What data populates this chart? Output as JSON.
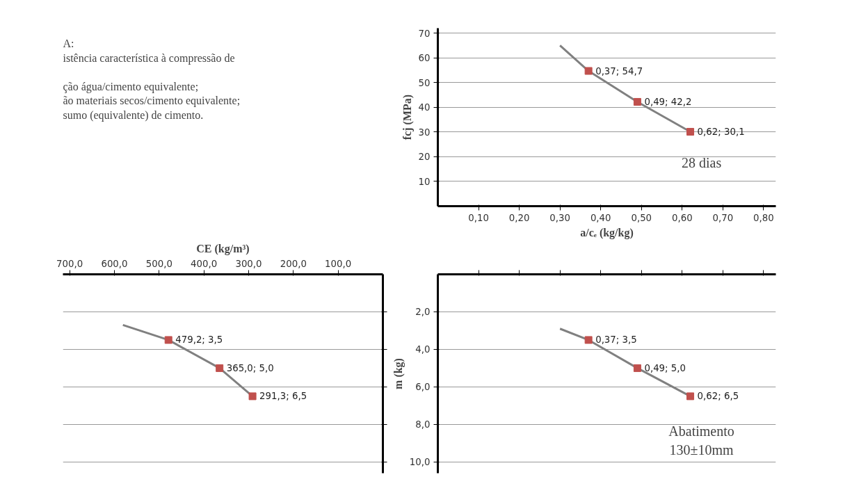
{
  "chart_data": [
    {
      "type": "other",
      "annotations": [
        "A:",
        "istência característica à compressão de",
        "ção água/cimento equivalente;",
        "ão materiais secos/cimento equivalente;",
        "sumo (equivalente) de cimento."
      ]
    },
    {
      "type": "line",
      "xlabel": "a/cₑ (kg/kg)",
      "ylabel": "fcj (MPa)",
      "xlim": [
        0,
        0.83
      ],
      "ylim": [
        0,
        72
      ],
      "grid": "y",
      "xticks": [
        {
          "value": 0.1,
          "label": "0,10"
        },
        {
          "value": 0.2,
          "label": "0,20"
        },
        {
          "value": 0.3,
          "label": "0,30"
        },
        {
          "value": 0.4,
          "label": "0,40"
        },
        {
          "value": 0.5,
          "label": "0,50"
        },
        {
          "value": 0.6,
          "label": "0,60"
        },
        {
          "value": 0.7,
          "label": "0,70"
        },
        {
          "value": 0.8,
          "label": "0,80"
        }
      ],
      "yticks": [
        10,
        20,
        30,
        40,
        50,
        60,
        70
      ],
      "annotations": [
        "28 dias"
      ],
      "series": [
        {
          "color": "#808080",
          "x": [
            0.3,
            0.37,
            0.49,
            0.62
          ],
          "values": [
            65,
            54.7,
            42.2,
            30.1
          ]
        },
        {
          "type": "scatter",
          "marker": "square",
          "color": "#c0504d",
          "x": [
            0.37,
            0.49,
            0.62
          ],
          "values": [
            54.7,
            42.2,
            30.1
          ],
          "value_labels": [
            "0,37; 54,7",
            "0,49; 42,2",
            "0,62; 30,1"
          ]
        }
      ]
    },
    {
      "type": "line",
      "xlabel": "CE (kg/m³)",
      "xlim": [
        715,
        0
      ],
      "ylim": [
        10.6,
        0
      ],
      "grid": "y",
      "tick_labels": "x",
      "xticks": [
        {
          "value": 100,
          "label": "100,0"
        },
        {
          "value": 200,
          "label": "200,0"
        },
        {
          "value": 300,
          "label": "300,0"
        },
        {
          "value": 400,
          "label": "400,0"
        },
        {
          "value": 500,
          "label": "500,0"
        },
        {
          "value": 600,
          "label": "600,0"
        },
        {
          "value": 700,
          "label": "700,0"
        }
      ],
      "yticks": [
        2,
        4,
        6,
        8,
        10
      ],
      "series": [
        {
          "color": "#808080",
          "x": [
            581,
            479.2,
            365.0,
            291.3
          ],
          "values": [
            2.7,
            3.5,
            5.0,
            6.5
          ]
        },
        {
          "type": "scatter",
          "marker": "square",
          "color": "#c0504d",
          "x": [
            479.2,
            365.0,
            291.3
          ],
          "values": [
            3.5,
            5.0,
            6.5
          ],
          "value_labels": [
            "479,2; 3,5",
            "365,0; 5,0",
            "291,3; 6,5"
          ]
        }
      ]
    },
    {
      "type": "line",
      "ylabel": "m (kg)",
      "xlim": [
        0,
        0.83
      ],
      "ylim": [
        10.6,
        0
      ],
      "grid": "y",
      "tick_labels": "y",
      "xticks": [
        0.1,
        0.2,
        0.3,
        0.4,
        0.5,
        0.6,
        0.7,
        0.8
      ],
      "yticks": [
        {
          "value": 2,
          "label": "2,0"
        },
        {
          "value": 4,
          "label": "4,0"
        },
        {
          "value": 6,
          "label": "6,0"
        },
        {
          "value": 8,
          "label": "8,0"
        },
        {
          "value": 10,
          "label": "10,0"
        }
      ],
      "annotations": [
        "Abatimento\n130±10mm"
      ],
      "series": [
        {
          "color": "#808080",
          "x": [
            0.3,
            0.37,
            0.49,
            0.62
          ],
          "values": [
            2.9,
            3.5,
            5.0,
            6.5
          ]
        },
        {
          "type": "scatter",
          "marker": "square",
          "color": "#c0504d",
          "x": [
            0.37,
            0.49,
            0.62
          ],
          "values": [
            3.5,
            5.0,
            6.5
          ],
          "value_labels": [
            "0,37; 3,5",
            "0,49; 5,0",
            "0,62; 6,5"
          ]
        }
      ]
    }
  ]
}
